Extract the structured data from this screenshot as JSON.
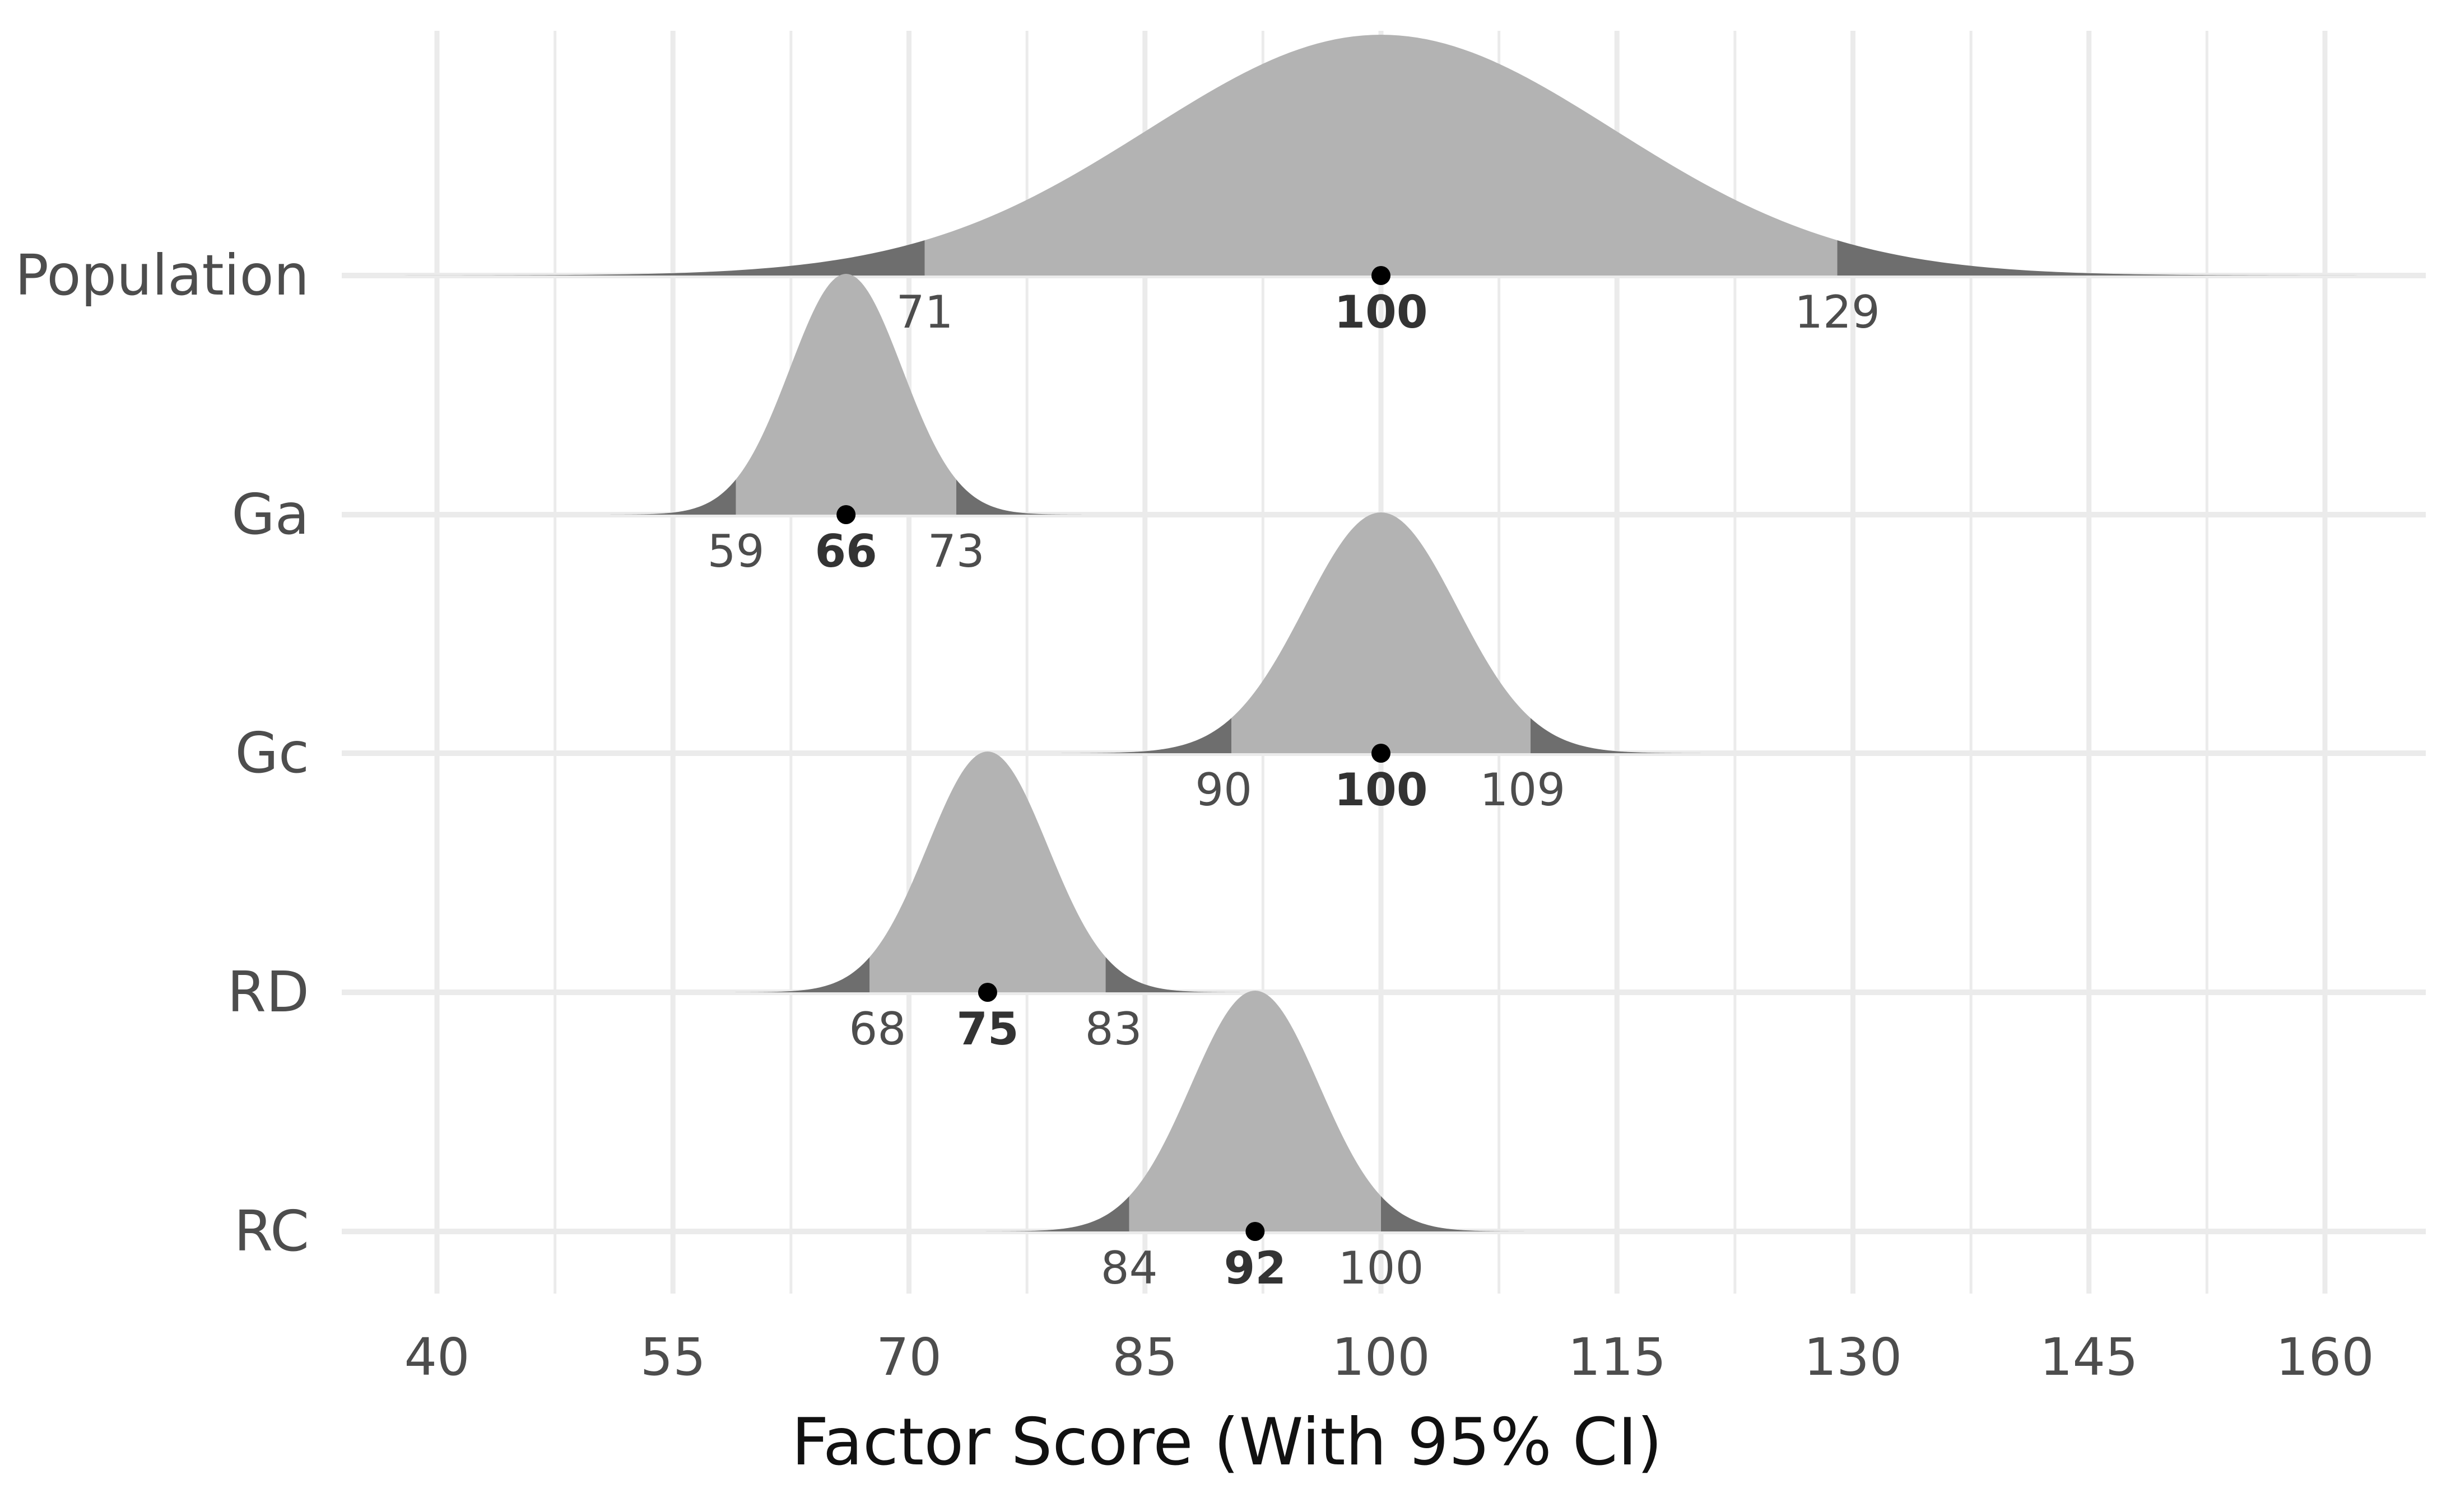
{
  "chart_data": {
    "type": "area",
    "xlabel": "Factor Score (With 95% CI)",
    "ylabel": "",
    "xlim": [
      40,
      160
    ],
    "x_ticks": [
      "40",
      "55",
      "70",
      "85",
      "100",
      "115",
      "130",
      "145",
      "160"
    ],
    "grid": true,
    "colors": {
      "fill": "#b3b3b3",
      "tail": "#6e6e6e",
      "point": "#000000",
      "grid": "#ebebeb"
    },
    "series": [
      {
        "name": "Population",
        "score": 100,
        "ci_low": 71,
        "ci_high": 129
      },
      {
        "name": "Ga",
        "score": 66,
        "ci_low": 59,
        "ci_high": 73
      },
      {
        "name": "Gc",
        "score": 100,
        "ci_low": 90,
        "ci_high": 109
      },
      {
        "name": "RD",
        "score": 75,
        "ci_low": 68,
        "ci_high": 83
      },
      {
        "name": "RC",
        "score": 92,
        "ci_low": 84,
        "ci_high": 100
      }
    ]
  }
}
